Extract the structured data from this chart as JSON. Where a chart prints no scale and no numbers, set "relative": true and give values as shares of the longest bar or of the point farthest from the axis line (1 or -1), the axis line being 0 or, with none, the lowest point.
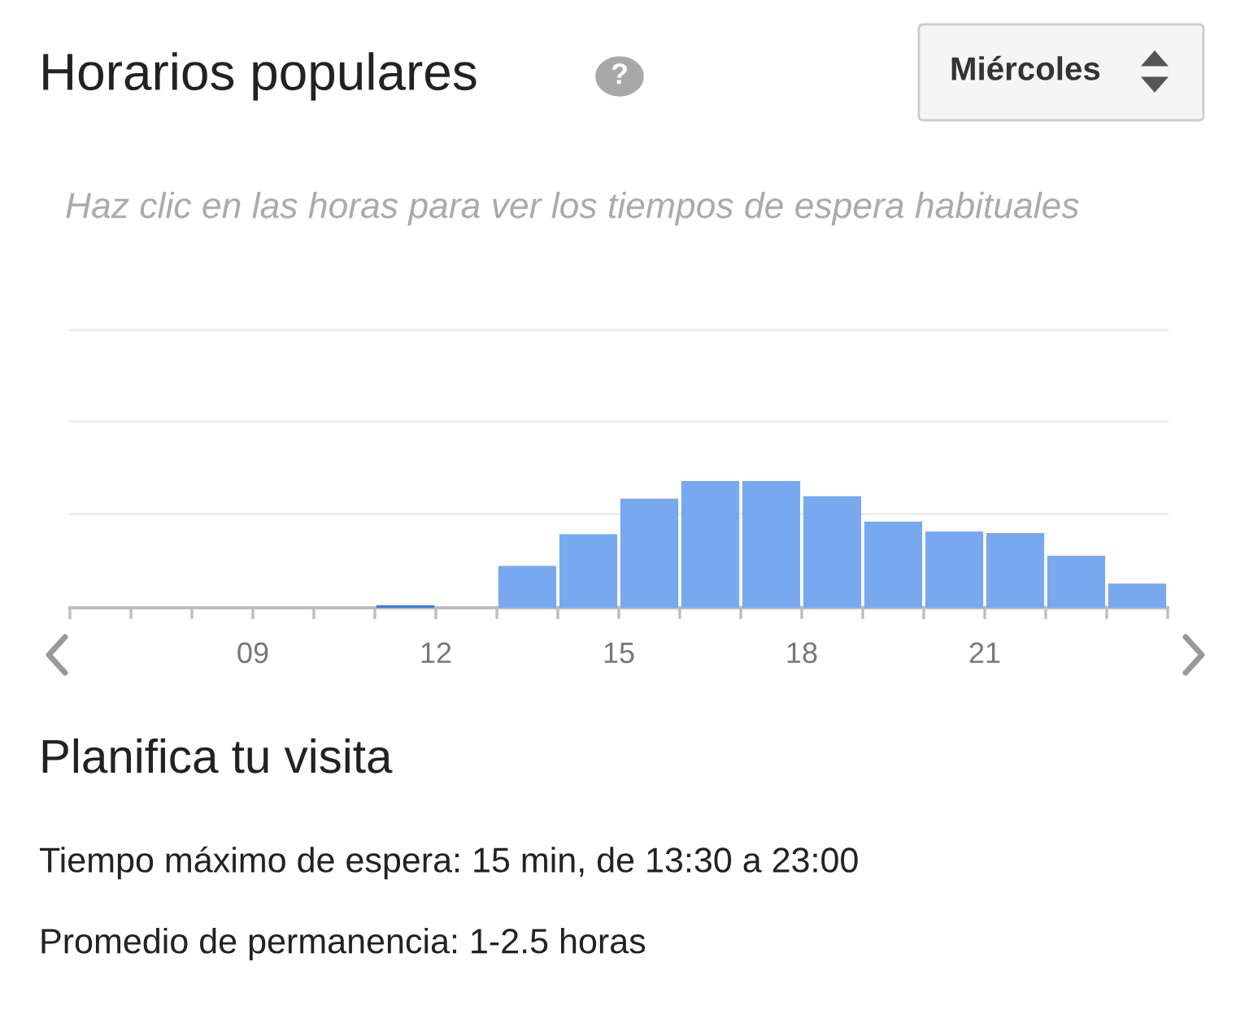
{
  "chart_data": {
    "type": "bar",
    "title": "Horarios populares",
    "subtitle": "Haz clic en las horas para ver los tiempos de espera habituales",
    "x": [
      6.5,
      7.5,
      8.5,
      9.5,
      10.5,
      11.5,
      12.5,
      13.5,
      14.5,
      15.5,
      16.5,
      17.5,
      18.5,
      19.5,
      20.5,
      21.5,
      22.5,
      23.5
    ],
    "values": [
      0,
      0,
      0,
      0,
      0,
      0.02,
      0,
      0.33,
      0.58,
      0.86,
      1,
      1,
      0.88,
      0.68,
      0.6,
      0.59,
      0.41,
      0.19
    ],
    "colors": [
      "#78a8f0",
      "#78a8f0",
      "#78a8f0",
      "#78a8f0",
      "#78a8f0",
      "#3b78e7",
      "#78a8f0",
      "#78a8f0",
      "#78a8f0",
      "#78a8f0",
      "#78a8f0",
      "#78a8f0",
      "#78a8f0",
      "#78a8f0",
      "#78a8f0",
      "#78a8f0",
      "#78a8f0",
      "#78a8f0"
    ],
    "relative": true,
    "xlim": [
      6,
      24
    ],
    "xticks": [
      {
        "value": 6,
        "label": null
      },
      {
        "value": 7,
        "label": null
      },
      {
        "value": 8,
        "label": null
      },
      {
        "value": 9,
        "label": "09"
      },
      {
        "value": 10,
        "label": null
      },
      {
        "value": 11,
        "label": null
      },
      {
        "value": 12,
        "label": "12"
      },
      {
        "value": 13,
        "label": null
      },
      {
        "value": 14,
        "label": null
      },
      {
        "value": 15,
        "label": "15"
      },
      {
        "value": 16,
        "label": null
      },
      {
        "value": 17,
        "label": null
      },
      {
        "value": 18,
        "label": "18"
      },
      {
        "value": 19,
        "label": null
      },
      {
        "value": 20,
        "label": null
      },
      {
        "value": 21,
        "label": "21"
      },
      {
        "value": 22,
        "label": null
      },
      {
        "value": 23,
        "label": null
      },
      {
        "value": 24,
        "label": null
      }
    ],
    "ref_lines": [
      {
        "axis": "y",
        "value": 0.74,
        "color": "#ececec"
      },
      {
        "axis": "y",
        "value": 1.47,
        "color": "#ececec"
      },
      {
        "axis": "y",
        "value": 2.19,
        "color": "#ececec"
      }
    ],
    "annotations": [
      "?",
      "Miércoles",
      "Planifica tu visita",
      "Tiempo máximo de espera: 15 min, de 13:30 a 23:00",
      "Promedio de permanencia: 1-2.5 horas"
    ]
  }
}
